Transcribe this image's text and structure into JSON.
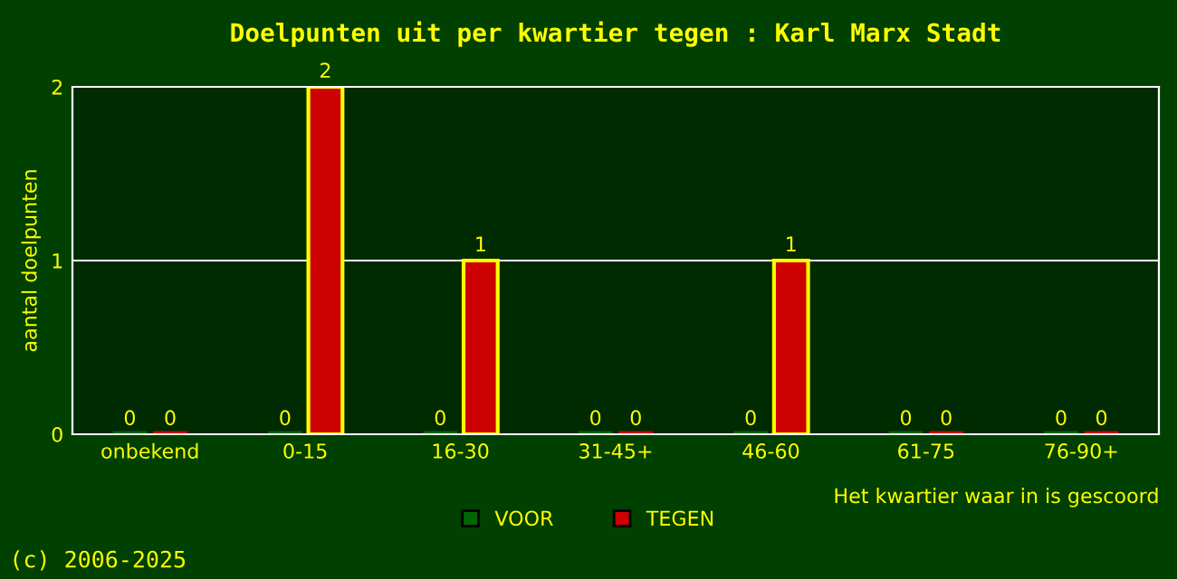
{
  "chart_data": {
    "type": "bar",
    "title": "Doelpunten uit per kwartier tegen : Karl Marx Stadt",
    "xlabel": "Het kwartier waar in is gescoord",
    "ylabel": "aantal doelpunten",
    "categories": [
      "onbekend",
      "0-15",
      "16-30",
      "31-45+",
      "46-60",
      "61-75",
      "76-90+"
    ],
    "series": [
      {
        "name": "VOOR",
        "color": "#006600",
        "values": [
          0,
          0,
          0,
          0,
          0,
          0,
          0
        ]
      },
      {
        "name": "TEGEN",
        "color": "#cc0000",
        "values": [
          0,
          2,
          1,
          0,
          1,
          0,
          0
        ]
      }
    ],
    "ylim": [
      0,
      2
    ],
    "yticks": [
      0,
      1,
      2
    ],
    "grid": "y",
    "legend": "bottom",
    "data_labels": true,
    "annotations": [
      "(c) 2006-2025"
    ]
  }
}
